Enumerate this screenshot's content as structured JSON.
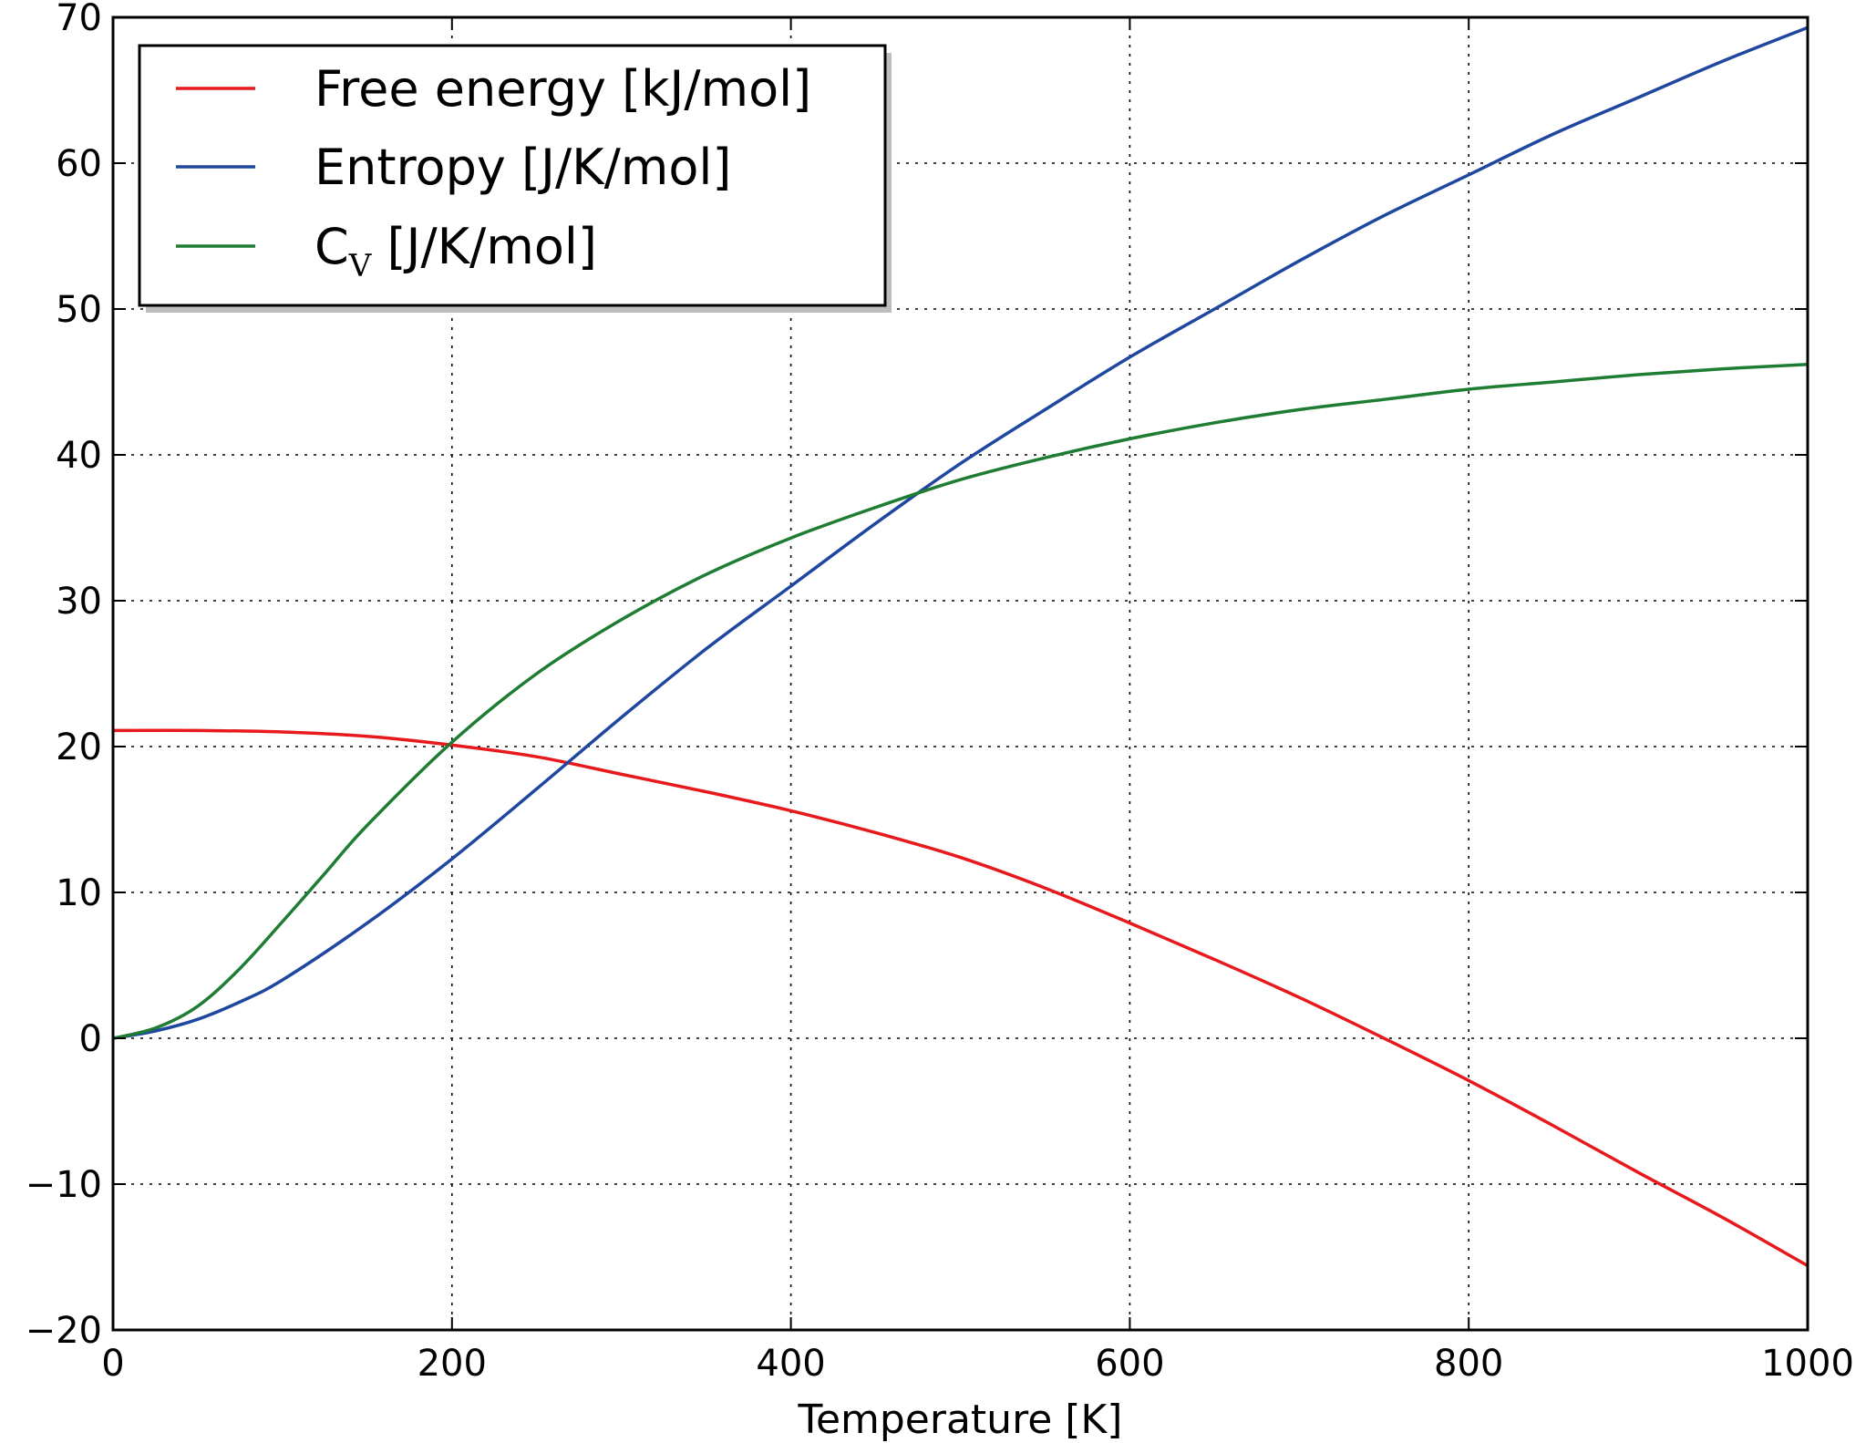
{
  "chart_data": {
    "type": "line",
    "title": "",
    "xlabel": "Temperature [K]",
    "ylabel": "",
    "xlim": [
      0,
      1000
    ],
    "ylim": [
      -20,
      70
    ],
    "xticks": [
      0,
      200,
      400,
      600,
      800,
      1000
    ],
    "yticks": [
      -20,
      -10,
      0,
      10,
      20,
      30,
      40,
      50,
      60,
      70
    ],
    "xtick_labels": [
      "0",
      "200",
      "400",
      "600",
      "800",
      "1000"
    ],
    "ytick_labels": [
      "−20",
      "−10",
      "0",
      "10",
      "20",
      "30",
      "40",
      "50",
      "60",
      "70"
    ],
    "grid": true,
    "legend_position": "top-left",
    "series": [
      {
        "name": "Free energy [kJ/mol]",
        "color": "#e8191c",
        "x": [
          0,
          50,
          100,
          150,
          200,
          250,
          300,
          350,
          400,
          450,
          500,
          550,
          600,
          650,
          700,
          750,
          800,
          850,
          900,
          950,
          1000
        ],
        "values": [
          21.1,
          21.1,
          21.0,
          20.7,
          20.1,
          19.3,
          18.1,
          16.9,
          15.6,
          14.1,
          12.4,
          10.3,
          7.9,
          5.4,
          2.8,
          0.0,
          -2.9,
          -6.0,
          -9.2,
          -12.3,
          -15.6
        ]
      },
      {
        "name": "Entropy [J/K/mol]",
        "color": "#1f47a0",
        "x": [
          0,
          25,
          50,
          75,
          100,
          150,
          200,
          250,
          300,
          350,
          400,
          450,
          500,
          550,
          600,
          650,
          700,
          750,
          800,
          850,
          900,
          950,
          1000
        ],
        "values": [
          0,
          0.5,
          1.3,
          2.5,
          4.0,
          7.9,
          12.3,
          17.1,
          22.0,
          26.7,
          31.0,
          35.3,
          39.4,
          43.1,
          46.7,
          50.0,
          53.3,
          56.4,
          59.2,
          62.0,
          64.5,
          67.0,
          69.3
        ]
      },
      {
        "name": "C_V [J/K/mol]",
        "label_main": "C",
        "label_sub": "V",
        "label_rest": " [J/K/mol]",
        "color": "#1e7d32",
        "x": [
          0,
          25,
          50,
          75,
          100,
          125,
          150,
          200,
          250,
          300,
          350,
          400,
          450,
          500,
          550,
          600,
          650,
          700,
          750,
          800,
          850,
          900,
          950,
          1000
        ],
        "values": [
          0,
          0.7,
          2.2,
          4.8,
          8.0,
          11.3,
          14.6,
          20.3,
          25.0,
          28.7,
          31.8,
          34.3,
          36.4,
          38.3,
          39.8,
          41.1,
          42.2,
          43.1,
          43.8,
          44.5,
          45.0,
          45.5,
          45.9,
          46.2
        ]
      }
    ]
  }
}
